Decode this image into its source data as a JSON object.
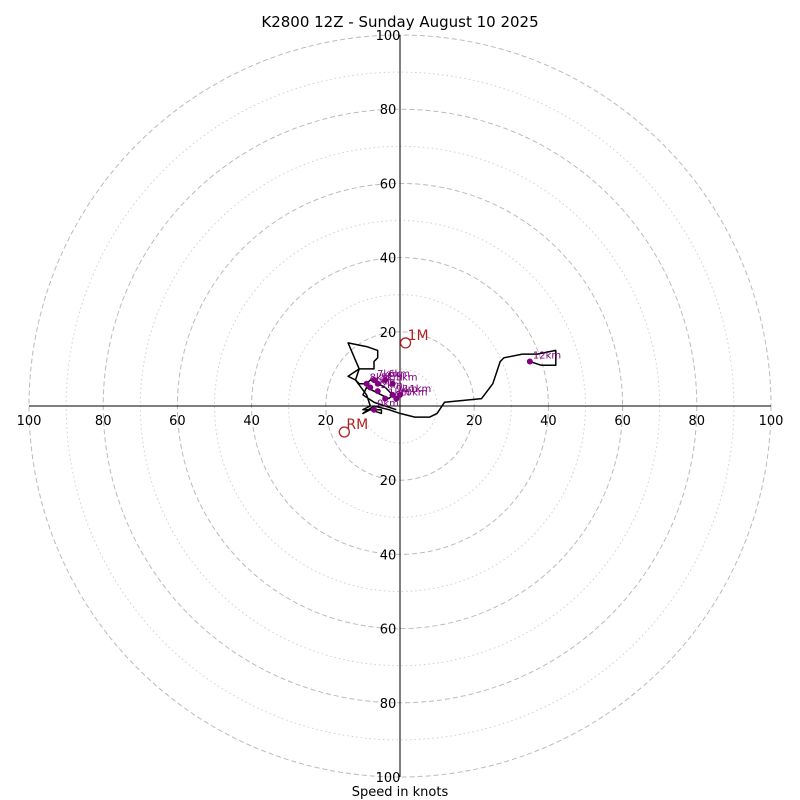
{
  "chart_data": {
    "type": "hodograph",
    "title": "K2800 12Z - Sunday August 10 2025",
    "xlabel": "Speed in knots",
    "xlim": [
      -100,
      100
    ],
    "ylim": [
      -100,
      100
    ],
    "ring_interval_major": 20,
    "ring_interval_minor": 10,
    "tick_labels": [
      "100",
      "80",
      "60",
      "40",
      "20"
    ],
    "colors": {
      "trace": "#000000",
      "height_markers": "#800080",
      "storm_motion": "#b22222",
      "rings": "#bbbbbb"
    },
    "trace": [
      [
        -1,
        -1
      ],
      [
        -4,
        0
      ],
      [
        -7,
        1
      ],
      [
        -10,
        3
      ],
      [
        -9,
        5
      ],
      [
        -7,
        4
      ],
      [
        -5,
        3
      ],
      [
        -3,
        2
      ],
      [
        -2,
        3
      ],
      [
        -4,
        5
      ],
      [
        -6,
        6
      ],
      [
        -8,
        7
      ],
      [
        -9,
        6
      ],
      [
        -11,
        6
      ],
      [
        -12,
        7
      ],
      [
        -14,
        8
      ],
      [
        -11,
        10
      ],
      [
        -7,
        10
      ],
      [
        -7,
        12
      ],
      [
        -6,
        13
      ],
      [
        -6,
        15
      ],
      [
        -9,
        16
      ],
      [
        -14,
        17
      ],
      [
        -11,
        10
      ],
      [
        -12,
        7
      ],
      [
        -9,
        3
      ],
      [
        -8,
        0
      ],
      [
        -10,
        -1
      ],
      [
        -7,
        -1
      ],
      [
        -5,
        -1
      ],
      [
        -5,
        -2
      ],
      [
        -8,
        -1
      ],
      [
        -10,
        -2
      ],
      [
        -7,
        0
      ],
      [
        -3,
        -1
      ],
      [
        0,
        -2
      ],
      [
        4,
        -3
      ],
      [
        8,
        -3
      ],
      [
        10,
        -2
      ],
      [
        12,
        1
      ],
      [
        22,
        2
      ],
      [
        25,
        6
      ],
      [
        26,
        9
      ],
      [
        27,
        12
      ],
      [
        28,
        13
      ],
      [
        33,
        14
      ],
      [
        37,
        14
      ],
      [
        42,
        15
      ],
      [
        42,
        11
      ],
      [
        38,
        11
      ],
      [
        35,
        12
      ]
    ],
    "height_markers": [
      {
        "label": "0km",
        "u": -7,
        "v": -1
      },
      {
        "label": "1km",
        "u": -4,
        "v": 2
      },
      {
        "label": "2km",
        "u": -6,
        "v": 4
      },
      {
        "label": "3km",
        "u": -2,
        "v": 6
      },
      {
        "label": "4km",
        "u": -8,
        "v": 5
      },
      {
        "label": "5km",
        "u": -6,
        "v": 6
      },
      {
        "label": "6km",
        "u": -4,
        "v": 7
      },
      {
        "label": "7km",
        "u": -7,
        "v": 7
      },
      {
        "label": "8km",
        "u": -9,
        "v": 6
      },
      {
        "label": "9km",
        "u": -2,
        "v": 3
      },
      {
        "label": "10km",
        "u": -1,
        "v": 2
      },
      {
        "label": "11km",
        "u": 0,
        "v": 3
      },
      {
        "label": "12km",
        "u": 35,
        "v": 12
      }
    ],
    "storm_motion": [
      {
        "label": "1M",
        "u": 1.5,
        "v": 17
      },
      {
        "label": "RM",
        "u": -15,
        "v": -7
      }
    ]
  }
}
